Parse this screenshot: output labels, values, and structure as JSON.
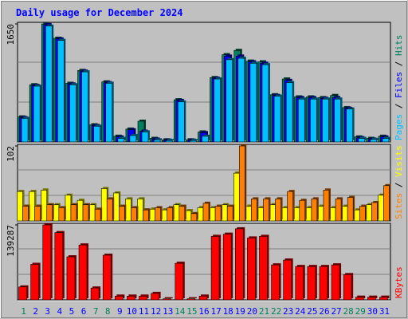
{
  "title": "Daily usage for December 2024",
  "separator": "/",
  "chart_data": [
    {
      "type": "bar",
      "ylim": [
        0,
        1650
      ],
      "yticks": [
        1650
      ],
      "series": [
        {
          "name": "Hits",
          "color": "#00805c",
          "values": [
            350,
            800,
            1650,
            1450,
            820,
            1000,
            240,
            840,
            80,
            180,
            290,
            50,
            30,
            590,
            30,
            140,
            900,
            1220,
            1280,
            1130,
            1120,
            660,
            880,
            630,
            630,
            620,
            650,
            480,
            70,
            50,
            80
          ]
        },
        {
          "name": "Files",
          "color": "#0000ff",
          "values": [
            340,
            790,
            1640,
            1440,
            810,
            990,
            230,
            830,
            70,
            170,
            150,
            40,
            25,
            580,
            25,
            130,
            890,
            1200,
            1200,
            1120,
            1100,
            650,
            860,
            620,
            620,
            610,
            620,
            470,
            60,
            40,
            70
          ]
        },
        {
          "name": "Pages",
          "color": "#00c0ff",
          "values": [
            330,
            780,
            1620,
            1420,
            800,
            980,
            220,
            820,
            50,
            90,
            140,
            30,
            20,
            560,
            20,
            80,
            880,
            1150,
            1170,
            1100,
            1080,
            640,
            830,
            600,
            600,
            600,
            600,
            460,
            50,
            35,
            50
          ]
        }
      ]
    },
    {
      "type": "bar",
      "ylim": [
        0,
        102
      ],
      "yticks": [
        102
      ],
      "series": [
        {
          "name": "Visits",
          "color": "#ffff00",
          "values": [
            40,
            40,
            42,
            22,
            35,
            28,
            22,
            44,
            38,
            30,
            30,
            16,
            15,
            22,
            14,
            18,
            18,
            22,
            65,
            20,
            18,
            22,
            18,
            18,
            18,
            20,
            18,
            20,
            15,
            22,
            35
          ]
        },
        {
          "name": "Sites",
          "color": "#ff8000",
          "values": [
            20,
            20,
            22,
            18,
            22,
            22,
            16,
            30,
            20,
            18,
            15,
            18,
            18,
            20,
            10,
            24,
            20,
            20,
            102,
            30,
            30,
            30,
            40,
            28,
            30,
            42,
            30,
            32,
            20,
            25,
            48
          ]
        }
      ]
    },
    {
      "type": "bar",
      "ylim": [
        0,
        139287
      ],
      "yticks": [
        139287
      ],
      "categories": [
        "1",
        "2",
        "3",
        "4",
        "5",
        "6",
        "7",
        "8",
        "9",
        "10",
        "11",
        "12",
        "13",
        "14",
        "15",
        "16",
        "17",
        "18",
        "19",
        "20",
        "21",
        "22",
        "23",
        "24",
        "25",
        "26",
        "27",
        "28",
        "29",
        "30",
        "31"
      ],
      "label_colors": [
        "#00805c",
        "#0000ff",
        "#0000ff",
        "#0000ff",
        "#0000ff",
        "#0000ff",
        "#00805c",
        "#00805c",
        "#0000ff",
        "#0000ff",
        "#0000ff",
        "#0000ff",
        "#0000ff",
        "#00805c",
        "#00805c",
        "#0000ff",
        "#0000ff",
        "#0000ff",
        "#0000ff",
        "#0000ff",
        "#00805c",
        "#00805c",
        "#0000ff",
        "#0000ff",
        "#0000ff",
        "#0000ff",
        "#0000ff",
        "#00805c",
        "#00805c",
        "#0000ff",
        "#0000ff"
      ],
      "series": [
        {
          "name": "KBytes",
          "color": "#ff0000",
          "values": [
            24000,
            66000,
            139287,
            125000,
            80000,
            102000,
            22000,
            83000,
            7000,
            7000,
            7000,
            12000,
            2000,
            68000,
            2000,
            7000,
            118000,
            122000,
            132000,
            115000,
            118000,
            65000,
            74000,
            62000,
            62000,
            62000,
            65000,
            47000,
            5000,
            5000,
            5000
          ]
        }
      ]
    }
  ]
}
